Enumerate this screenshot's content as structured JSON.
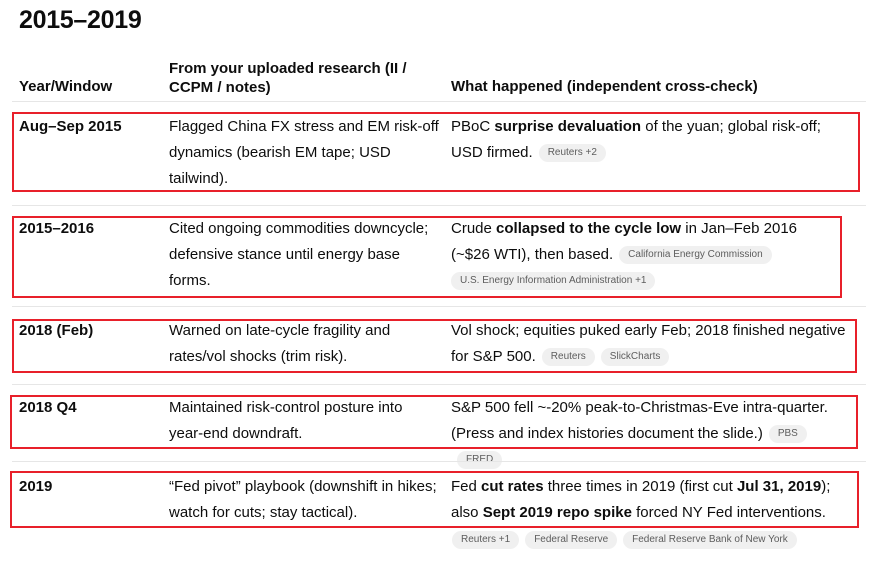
{
  "title": "2015–2019",
  "headers": [
    "Year/Window",
    "From your uploaded research (II / CCPM / notes)",
    "What happened (independent cross-check)"
  ],
  "rows": [
    {
      "year": "Aug–Sep 2015",
      "research": "Flagged China FX stress and EM risk-off dynamics (bearish EM tape; USD tailwind).",
      "happened": [
        {
          "t": "PBoC "
        },
        {
          "t": "surprise devaluation",
          "b": true
        },
        {
          "t": " of the yuan; global risk-off; USD firmed."
        }
      ],
      "chips": [
        "Reuters +2"
      ]
    },
    {
      "year": "2015–2016",
      "research": "Cited ongoing commodities downcycle; defensive stance until energy base forms.",
      "happened": [
        {
          "t": "Crude "
        },
        {
          "t": "collapsed to the cycle low",
          "b": true
        },
        {
          "t": " in Jan–Feb 2016 (~$26 WTI), then based."
        }
      ],
      "chips": [
        "California Energy Commission",
        "U.S. Energy Information Administration +1"
      ]
    },
    {
      "year": "2018 (Feb)",
      "research": "Warned on late-cycle fragility and rates/vol shocks (trim risk).",
      "happened": [
        {
          "t": "Vol shock; equities puked early Feb; 2018 finished negative for S&P 500."
        }
      ],
      "chips": [
        "Reuters",
        "SlickCharts"
      ]
    },
    {
      "year": "2018 Q4",
      "research": "Maintained risk-control posture into year-end downdraft.",
      "happened": [
        {
          "t": "S&P 500 fell ~-20% peak-to-Christmas-Eve intra-quarter. (Press and index histories document the slide.)"
        }
      ],
      "chips": [
        "PBS",
        "FRED"
      ]
    },
    {
      "year": "2019",
      "research": "“Fed pivot” playbook (downshift in hikes; watch for cuts; stay tactical).",
      "happened": [
        {
          "t": "Fed "
        },
        {
          "t": "cut rates",
          "b": true
        },
        {
          "t": " three times in 2019 (first cut "
        },
        {
          "t": "Jul 31, 2019",
          "b": true
        },
        {
          "t": "); also "
        },
        {
          "t": "Sept 2019 repo spike",
          "b": true
        },
        {
          "t": " forced NY Fed interventions."
        }
      ],
      "chips": [
        "Reuters +1",
        "Federal Reserve",
        "Federal Reserve Bank of New York"
      ]
    }
  ],
  "colors": {
    "highlight_box": "#e8202a",
    "chip_bg": "#f0f0f0"
  }
}
